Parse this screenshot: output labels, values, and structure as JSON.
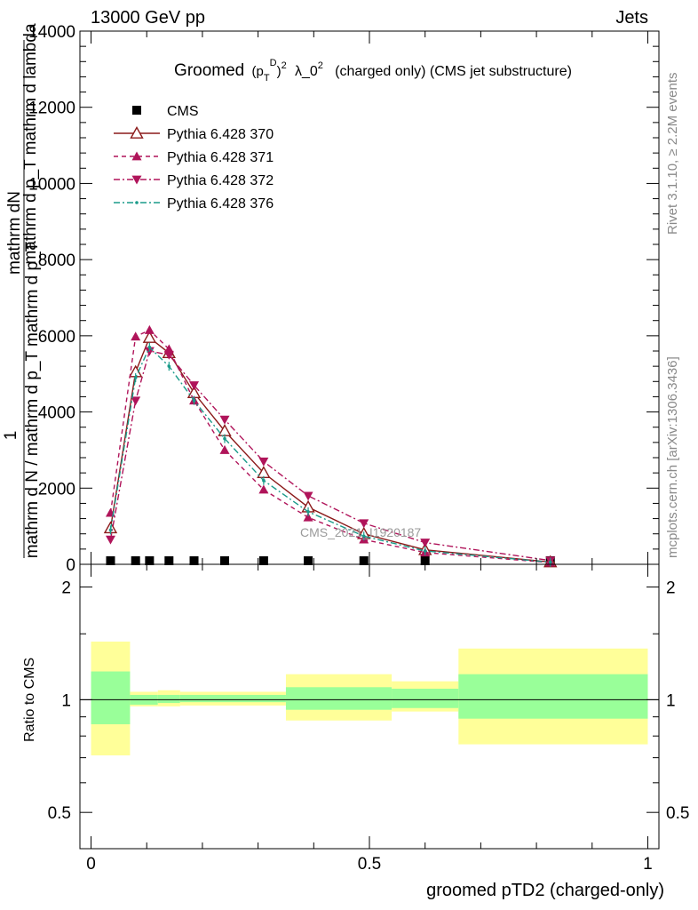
{
  "header": {
    "left": "13000 GeV pp",
    "right": "Jets",
    "side_top": "Rivet 3.1.10, ≥ 2.2M events",
    "side_bottom": "mcplots.cern.ch [arXiv:1306.3436]"
  },
  "chart_data": [
    {
      "type": "line",
      "title_main": "Groomed",
      "title_math": "(p_T^D)^2",
      "title_rest": "λ_0^2  (charged only) (CMS jet substructure)",
      "ylabel_numerator": "mathrm dN",
      "ylabel_numerator_2": "mathrm d p_T mathrm d lambda",
      "ylabel_prefix": "1",
      "ylabel_denominator": "mathrm d N / mathrm d p_T mathrm d p_T",
      "xlabel": "groomed pTD2 (charged-only)",
      "watermark": "CMS_2021_I1920187",
      "xlim": [
        -0.02,
        1.02
      ],
      "ylim": [
        0,
        14000
      ],
      "y_ticks": [
        "0",
        "2000",
        "4000",
        "6000",
        "8000",
        "10000",
        "12000",
        "14000"
      ],
      "x": [
        0.035,
        0.08,
        0.105,
        0.14,
        0.185,
        0.24,
        0.31,
        0.39,
        0.49,
        0.6,
        0.825
      ],
      "series": [
        {
          "name": "CMS",
          "color": "#000000",
          "style": "data",
          "values": [
            0,
            0,
            0,
            0,
            0,
            0,
            0,
            0,
            0,
            0,
            0
          ]
        },
        {
          "name": "Pythia 6.428 370",
          "color": "#8b1a1a",
          "style": "solid-open-up",
          "values": [
            950,
            5050,
            5950,
            5550,
            4500,
            3500,
            2400,
            1500,
            800,
            380,
            60
          ]
        },
        {
          "name": "Pythia 6.428 371",
          "color": "#b0145a",
          "style": "dash-up",
          "values": [
            1350,
            5980,
            6150,
            5650,
            4300,
            3000,
            1960,
            1230,
            650,
            310,
            45
          ]
        },
        {
          "name": "Pythia 6.428 372",
          "color": "#b0145a",
          "style": "dashdot-down",
          "values": [
            650,
            4300,
            5600,
            5500,
            4700,
            3800,
            2700,
            1800,
            1080,
            570,
            100
          ]
        },
        {
          "name": "Pythia 6.428 376",
          "color": "#1a9b8a",
          "style": "dashdot-dot",
          "values": [
            900,
            4900,
            5700,
            5200,
            4300,
            3300,
            2200,
            1380,
            740,
            350,
            55
          ]
        }
      ]
    },
    {
      "type": "area",
      "ylabel": "Ratio to CMS",
      "y_ticks": [
        "0.5",
        "1",
        "2"
      ],
      "x_ticks": [
        "0",
        "0.5",
        "1"
      ],
      "ylim": [
        0.4,
        2.3
      ],
      "y_scale": "log",
      "bins": [
        0,
        0.07,
        0.12,
        0.16,
        0.35,
        0.54,
        0.66,
        1.0
      ],
      "stat_lo": [
        0.86,
        0.97,
        0.98,
        0.985,
        0.94,
        0.95,
        0.89
      ],
      "stat_hi": [
        1.19,
        1.03,
        1.03,
        1.03,
        1.08,
        1.07,
        1.17
      ],
      "total_lo": [
        0.71,
        0.96,
        0.96,
        0.965,
        0.88,
        0.93,
        0.76
      ],
      "total_hi": [
        1.43,
        1.05,
        1.06,
        1.05,
        1.17,
        1.12,
        1.37
      ],
      "stat_color": "#99ff99",
      "total_color": "#ffff99",
      "ratio": 1
    }
  ]
}
